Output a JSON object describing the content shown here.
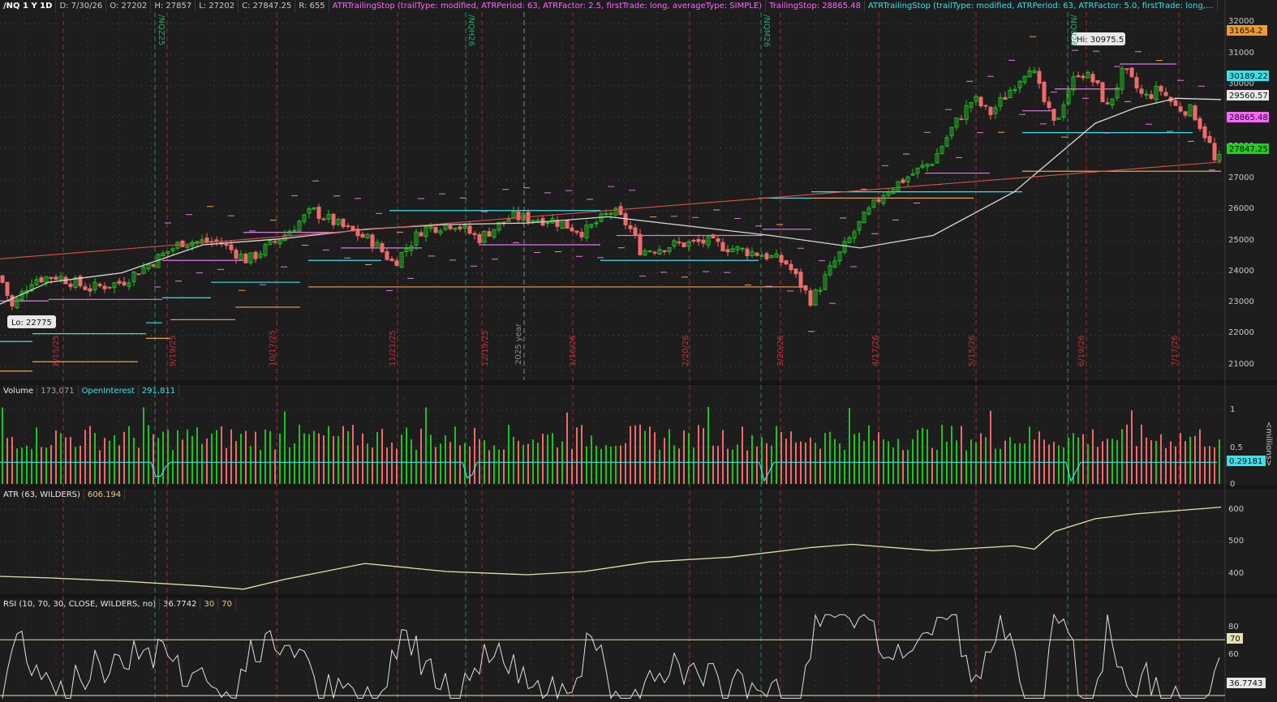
{
  "header": {
    "symbol": "/NQ 1 Y 1D",
    "date": "D: 7/30/26",
    "open": "O: 27202",
    "high": "H: 27857",
    "low": "L: 27202",
    "close": "C: 27847.25",
    "range": "R: 655",
    "study1": "ATRTrailingStop (trailType: modified, ATRPeriod: 63, ATRFactor: 2.5, firstTrade: long, averageType: SIMPLE)",
    "study1_value": "TrailingStop: 28865.48",
    "study2": "ATRTrailingStop (trailType: modified, ATRPeriod: 63, ATRFactor: 5.0, firstTrade: long,..."
  },
  "price_axis": {
    "ticks": [
      "32000",
      "31000",
      "30000",
      "29000",
      "28000",
      "27000",
      "26000",
      "25000",
      "24000",
      "23000",
      "22000",
      "21000"
    ],
    "badges": {
      "orange": "31654.2",
      "cyan": "30189.22",
      "white": "29560.57",
      "pink": "28865.48",
      "green": "27847.25"
    }
  },
  "annotations": {
    "hi": "Hi: 30975.5",
    "lo": "Lo: 22775",
    "year": "2025 year"
  },
  "contract_labels": [
    "/NQZ25",
    "/NQH26",
    "/NQM26",
    "/NQU26"
  ],
  "date_labels": [
    "8/15/25",
    "9/19/25",
    "10/17/25",
    "11/21/25",
    "12/19/25",
    "1/16/26",
    "2/20/26",
    "3/20/26",
    "4/17/26",
    "5/15/26",
    "6/19/26",
    "7/17/26"
  ],
  "volume": {
    "title": "Volume",
    "value": "173,071",
    "oi_title": "OpenInterest",
    "oi_value": "291,811",
    "axis_ticks": [
      "1",
      "0.5",
      "0"
    ],
    "unit": "<millions>",
    "badge": "0.29181"
  },
  "atr": {
    "title": "ATR (63, WILDERS)",
    "value": "606.194",
    "axis_ticks": [
      "600",
      "500",
      "400"
    ]
  },
  "rsi": {
    "title": "RSI (10, 70, 30, CLOSE, WILDERS, no)",
    "value": "36.7742",
    "os": "30",
    "ob": "70",
    "axis_ticks": [
      "80",
      "60"
    ],
    "badge_ob": "70",
    "badge_val": "36.7743"
  },
  "colors": {
    "up": "#1fc21f",
    "down": "#f06a6a",
    "background": "#1d1d1d",
    "grid": "#4a4a4a",
    "sma": "#d8d8d8",
    "trend": "#e0504a",
    "stop_pink": "#e07ae8",
    "stop_cyan": "#3fe0e8",
    "stop_orange": "#f0a050",
    "atr_line": "#e8dfb0"
  }
}
